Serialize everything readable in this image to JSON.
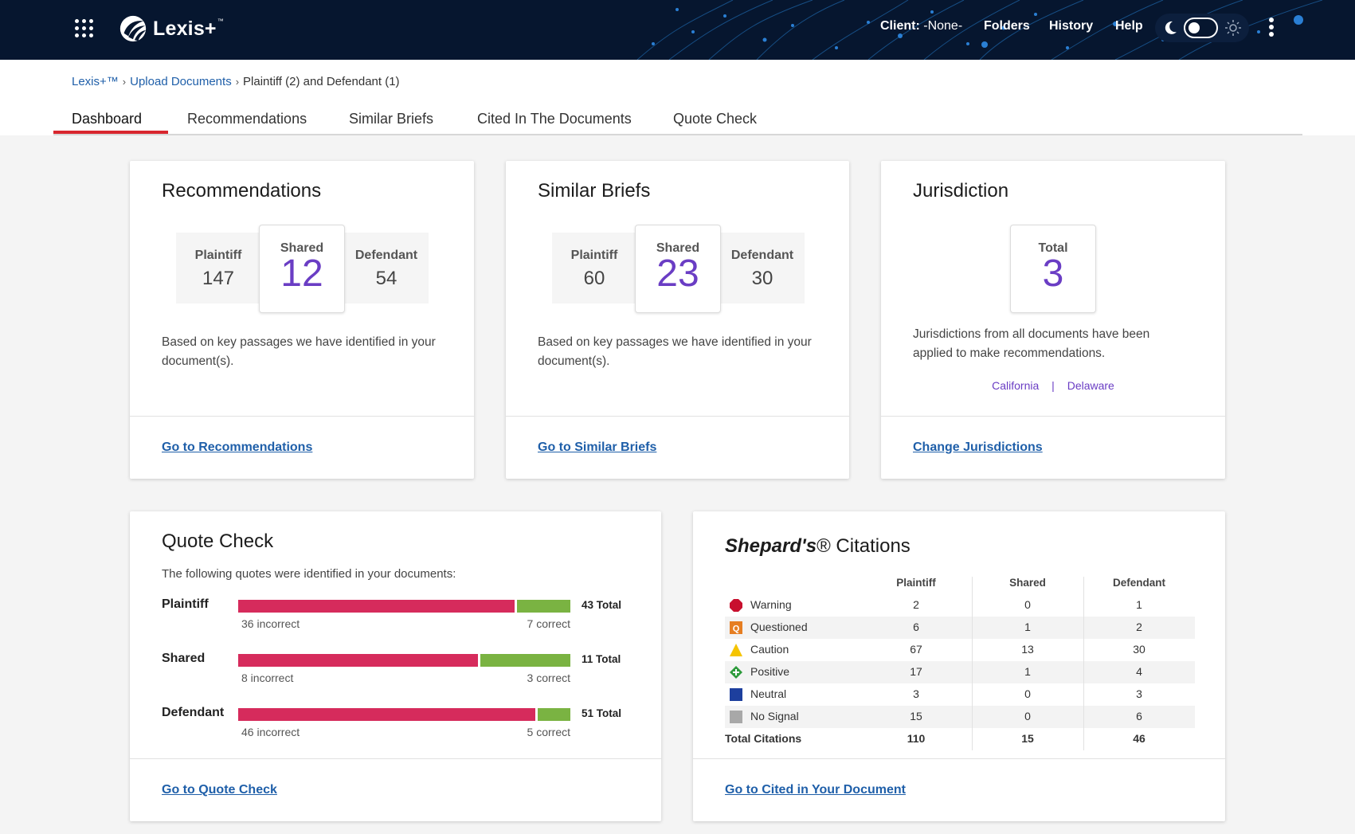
{
  "header": {
    "app_name": "Lexis+",
    "tm": "™",
    "client_label": "Client:",
    "client_value": "-None-",
    "nav": [
      "Folders",
      "History",
      "Help"
    ]
  },
  "breadcrumb": {
    "root": "Lexis+™",
    "upload": "Upload Documents",
    "current": "Plaintiff (2) and Defendant (1)"
  },
  "tabs": [
    "Dashboard",
    "Recommendations",
    "Similar Briefs",
    "Cited In The Documents",
    "Quote Check"
  ],
  "colors": {
    "accent_tab": "#d8262e",
    "link": "#1f5fa9",
    "shared_number": "#6a3dc4",
    "incorrect": "#d62b5c",
    "correct": "#7ab342"
  },
  "recommendations": {
    "title": "Recommendations",
    "plaintiff_label": "Plaintiff",
    "plaintiff_value": "147",
    "shared_label": "Shared",
    "shared_value": "12",
    "defendant_label": "Defendant",
    "defendant_value": "54",
    "description": "Based on key passages we have identified in your document(s).",
    "link": "Go to Recommendations"
  },
  "similar_briefs": {
    "title": "Similar Briefs",
    "plaintiff_label": "Plaintiff",
    "plaintiff_value": "60",
    "shared_label": "Shared",
    "shared_value": "23",
    "defendant_label": "Defendant",
    "defendant_value": "30",
    "description": "Based on key passages we have identified in your document(s).",
    "link": "Go to Similar Briefs"
  },
  "jurisdiction": {
    "title": "Jurisdiction",
    "total_label": "Total",
    "total_value": "3",
    "description": "Jurisdictions from all documents have been applied to make recommendations.",
    "items": [
      "California",
      "Delaware"
    ],
    "separator": "|",
    "link": "Change Jurisdictions"
  },
  "quote_check": {
    "title": "Quote Check",
    "subtitle": "The following quotes were identified in your documents:",
    "rows": [
      {
        "label": "Plaintiff",
        "incorrect": 36,
        "correct": 7,
        "incorrect_text": "36 incorrect",
        "correct_text": "7 correct",
        "total_text": "43 Total"
      },
      {
        "label": "Shared",
        "incorrect": 8,
        "correct": 3,
        "incorrect_text": "8 incorrect",
        "correct_text": "3 correct",
        "total_text": "11 Total"
      },
      {
        "label": "Defendant",
        "incorrect": 46,
        "correct": 5,
        "incorrect_text": "46 incorrect",
        "correct_text": "5 correct",
        "total_text": "51 Total"
      }
    ],
    "link": "Go to Quote Check"
  },
  "shepards": {
    "title_italic": "Shepard's",
    "title_rest": "® Citations",
    "columns": [
      "Plaintiff",
      "Shared",
      "Defendant"
    ],
    "rows": [
      {
        "name": "Warning",
        "icon": "warning-signal-icon",
        "color": "#c8102e",
        "values": [
          "2",
          "0",
          "1"
        ]
      },
      {
        "name": "Questioned",
        "icon": "questioned-signal-icon",
        "color": "#e67e22",
        "values": [
          "6",
          "1",
          "2"
        ]
      },
      {
        "name": "Caution",
        "icon": "caution-signal-icon",
        "color": "#f5c400",
        "values": [
          "67",
          "13",
          "30"
        ]
      },
      {
        "name": "Positive",
        "icon": "positive-signal-icon",
        "color": "#2e9b3c",
        "values": [
          "17",
          "1",
          "4"
        ]
      },
      {
        "name": "Neutral",
        "icon": "neutral-signal-icon",
        "color": "#1d3f9e",
        "values": [
          "3",
          "0",
          "3"
        ]
      },
      {
        "name": "No Signal",
        "icon": "no-signal-icon",
        "color": "#a8a8a8",
        "values": [
          "15",
          "0",
          "6"
        ]
      }
    ],
    "total_label": "Total Citations",
    "totals": [
      "110",
      "15",
      "46"
    ],
    "link": "Go to Cited in Your Document"
  }
}
